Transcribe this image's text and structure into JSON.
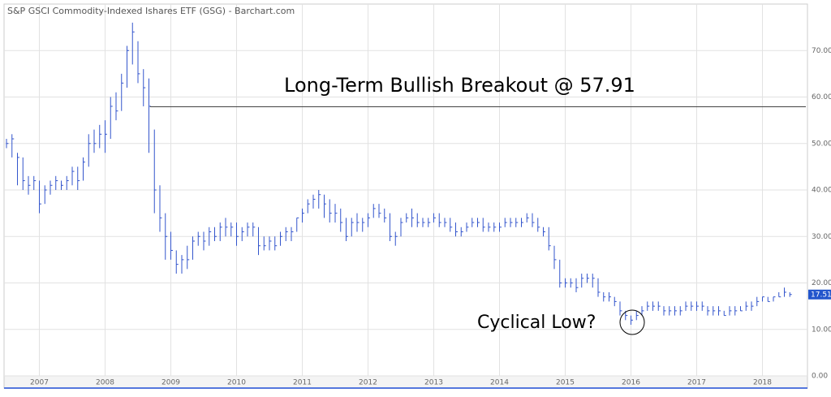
{
  "chart_data": {
    "type": "ohlc",
    "title": "S&P GSCI Commodity-Indexed Ishares ETF (GSG) - Barchart.com",
    "color": "#3355cc",
    "categories": [
      null,
      null,
      null,
      null,
      null,
      null,
      "2007",
      null,
      null,
      null,
      null,
      null,
      null,
      null,
      null,
      null,
      null,
      null,
      "2008",
      null,
      null,
      null,
      null,
      null,
      null,
      null,
      null,
      null,
      null,
      null,
      "2009",
      null,
      null,
      null,
      null,
      null,
      null,
      null,
      null,
      null,
      null,
      null,
      "2010",
      null,
      null,
      null,
      null,
      null,
      null,
      null,
      null,
      null,
      null,
      null,
      "2011",
      null,
      null,
      null,
      null,
      null,
      null,
      null,
      null,
      null,
      null,
      null,
      "2012",
      null,
      null,
      null,
      null,
      null,
      null,
      null,
      null,
      null,
      null,
      null,
      "2013",
      null,
      null,
      null,
      null,
      null,
      null,
      null,
      null,
      null,
      null,
      null,
      "2014",
      null,
      null,
      null,
      null,
      null,
      null,
      null,
      null,
      null,
      null,
      null,
      "2015",
      null,
      null,
      null,
      null,
      null,
      null,
      null,
      null,
      null,
      null,
      null,
      "2016",
      null,
      null,
      null,
      null,
      null,
      null,
      null,
      null,
      null,
      null,
      null,
      "2017",
      null,
      null,
      null,
      null,
      null,
      null,
      null,
      null,
      null,
      null,
      null,
      "2018",
      null,
      null,
      null,
      null,
      null
    ],
    "close": [
      50,
      51,
      47,
      42,
      41,
      42,
      37,
      40,
      41,
      42,
      41,
      42,
      44,
      42,
      46,
      50,
      50,
      52,
      52,
      58,
      57,
      63,
      70,
      74,
      65,
      62,
      58,
      40,
      34,
      30,
      27,
      24,
      25,
      25,
      29,
      30,
      29,
      31,
      30,
      32,
      32,
      32,
      30,
      31,
      32,
      32,
      28,
      28,
      29,
      28,
      30,
      31,
      31,
      34,
      35,
      37,
      38,
      39,
      37,
      35,
      35,
      33,
      30,
      33,
      33,
      33,
      34,
      36,
      35,
      34,
      30,
      30,
      33,
      34,
      34,
      33,
      33,
      33,
      34,
      33,
      33,
      32,
      31,
      31,
      32,
      33,
      33,
      32,
      32,
      32,
      32,
      33,
      33,
      33,
      33,
      34,
      33,
      32,
      31,
      28,
      25,
      20,
      20,
      20,
      19,
      21,
      21,
      21,
      18,
      17,
      17,
      16,
      14,
      13,
      12,
      13,
      14,
      15,
      15,
      15,
      14,
      14,
      14,
      14,
      15,
      15,
      15,
      15,
      14,
      14,
      14,
      13,
      14,
      14,
      14,
      15,
      15,
      16,
      17,
      16,
      17,
      17,
      18,
      17.51
    ],
    "high": [
      51,
      52,
      48,
      47,
      43,
      43,
      42,
      41,
      42,
      43,
      42,
      43,
      45,
      45,
      47,
      52,
      53,
      54,
      55,
      60,
      61,
      65,
      71,
      76,
      72,
      66,
      64,
      53,
      41,
      35,
      31,
      27,
      26,
      28,
      30,
      31,
      31,
      32,
      32,
      33,
      34,
      33,
      33,
      32,
      33,
      33,
      32,
      30,
      30,
      30,
      31,
      32,
      32,
      34,
      36,
      38,
      39,
      40,
      39,
      38,
      37,
      36,
      34,
      34,
      35,
      34,
      35,
      37,
      37,
      36,
      35,
      31,
      34,
      35,
      36,
      35,
      34,
      34,
      35,
      35,
      34,
      34,
      33,
      32,
      33,
      34,
      34,
      34,
      33,
      33,
      33,
      34,
      34,
      34,
      34,
      35,
      35,
      34,
      32,
      32,
      28,
      25,
      21,
      21,
      21,
      22,
      22,
      22,
      21,
      18,
      18,
      17,
      16,
      14,
      13,
      14,
      15,
      16,
      16,
      16,
      15,
      15,
      15,
      15,
      16,
      16,
      16,
      16,
      15,
      15,
      15,
      14,
      15,
      15,
      15,
      16,
      16,
      17,
      17,
      17,
      17,
      18,
      19,
      18
    ],
    "low": [
      49,
      47,
      41,
      40,
      39,
      40,
      35,
      37,
      39,
      40,
      40,
      40,
      41,
      40,
      42,
      45,
      48,
      49,
      48,
      51,
      55,
      57,
      62,
      67,
      63,
      58,
      48,
      35,
      31,
      25,
      25,
      22,
      22,
      23,
      25,
      28,
      27,
      28,
      29,
      29,
      30,
      30,
      28,
      29,
      30,
      30,
      26,
      27,
      27,
      27,
      28,
      29,
      29,
      31,
      33,
      35,
      36,
      36,
      34,
      33,
      33,
      31,
      29,
      30,
      31,
      31,
      32,
      34,
      34,
      33,
      29,
      28,
      30,
      33,
      32,
      32,
      32,
      32,
      33,
      32,
      32,
      31,
      30,
      30,
      31,
      32,
      32,
      31,
      31,
      31,
      31,
      32,
      32,
      32,
      32,
      33,
      32,
      31,
      30,
      27,
      23,
      19,
      19,
      19,
      18,
      19,
      20,
      19,
      17,
      16,
      16,
      15,
      13,
      12,
      11,
      12,
      13,
      14,
      14,
      14,
      13,
      13,
      13,
      13,
      14,
      14,
      14,
      14,
      13,
      13,
      13,
      13,
      13,
      13,
      14,
      14,
      14,
      15,
      16,
      16,
      16,
      17,
      17,
      17
    ],
    "ylim": [
      0,
      80
    ],
    "yticks": [
      {
        "value": 0,
        "label": "0.00"
      },
      {
        "value": 10,
        "label": "10.00"
      },
      {
        "value": 20,
        "label": "20.00"
      },
      {
        "value": 30,
        "label": "30.00"
      },
      {
        "value": 40,
        "label": "40.00"
      },
      {
        "value": 50,
        "label": "50.00"
      },
      {
        "value": 60,
        "label": "60.00"
      },
      {
        "value": 70,
        "label": "70.00"
      }
    ],
    "grid": true,
    "last": {
      "value": 17.51,
      "label": "17.51"
    },
    "annotations": [
      {
        "text": "Long-Term Bullish Breakout @ 57.91",
        "level": 57.91
      },
      {
        "text": "Cyclical Low?"
      }
    ]
  }
}
